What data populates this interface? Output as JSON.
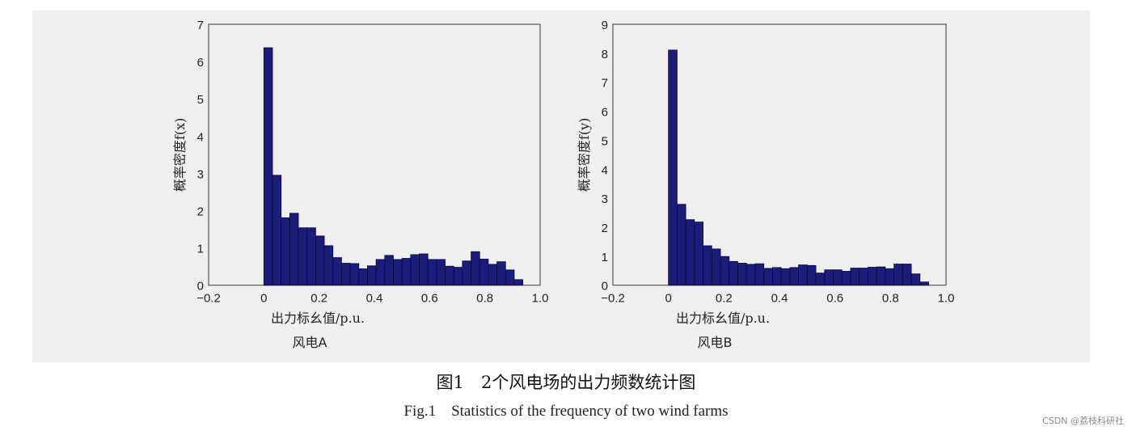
{
  "caption_cn": "图1　2个风电场的出力频数统计图",
  "caption_en": "Fig.1　Statistics of the frequency of two wind farms",
  "watermark": "CSDN @荔枝科研社",
  "chart_data": [
    {
      "type": "bar",
      "title": "风电A",
      "xlabel": "出力标幺值/p.u.",
      "ylabel": "概率密度f(x)",
      "xlim": [
        -0.2,
        1.0
      ],
      "ylim": [
        0,
        7
      ],
      "xticks": [
        "−0.2",
        "0",
        "0.2",
        "0.4",
        "0.6",
        "0.8",
        "1.0"
      ],
      "yticks": [
        "0",
        "1",
        "2",
        "3",
        "4",
        "5",
        "6",
        "7"
      ],
      "bin_width": 0.03125,
      "bin_start": 0,
      "values": [
        6.37,
        2.95,
        1.81,
        1.93,
        1.54,
        1.54,
        1.32,
        1.06,
        0.74,
        0.59,
        0.58,
        0.44,
        0.52,
        0.69,
        0.8,
        0.69,
        0.72,
        0.82,
        0.84,
        0.69,
        0.69,
        0.51,
        0.48,
        0.65,
        0.9,
        0.7,
        0.56,
        0.63,
        0.41,
        0.15
      ]
    },
    {
      "type": "bar",
      "title": "风电B",
      "xlabel": "出力标幺值/p.u.",
      "ylabel": "概率密度f(y)",
      "xlim": [
        -0.2,
        1.0
      ],
      "ylim": [
        0,
        9
      ],
      "xticks": [
        "−0.2",
        "0",
        "0.2",
        "0.4",
        "0.6",
        "0.8",
        "1.0"
      ],
      "yticks": [
        "0",
        "1",
        "2",
        "3",
        "4",
        "5",
        "6",
        "7",
        "8",
        "9"
      ],
      "bin_width": 0.03125,
      "bin_start": 0,
      "values": [
        8.11,
        2.79,
        2.26,
        2.18,
        1.36,
        1.25,
        0.99,
        0.82,
        0.76,
        0.72,
        0.74,
        0.58,
        0.61,
        0.57,
        0.61,
        0.7,
        0.68,
        0.42,
        0.53,
        0.53,
        0.48,
        0.59,
        0.59,
        0.62,
        0.63,
        0.57,
        0.73,
        0.73,
        0.39,
        0.11
      ]
    }
  ],
  "colors": {
    "bar": "#1c1c7c",
    "edge": "#0a0a30"
  }
}
